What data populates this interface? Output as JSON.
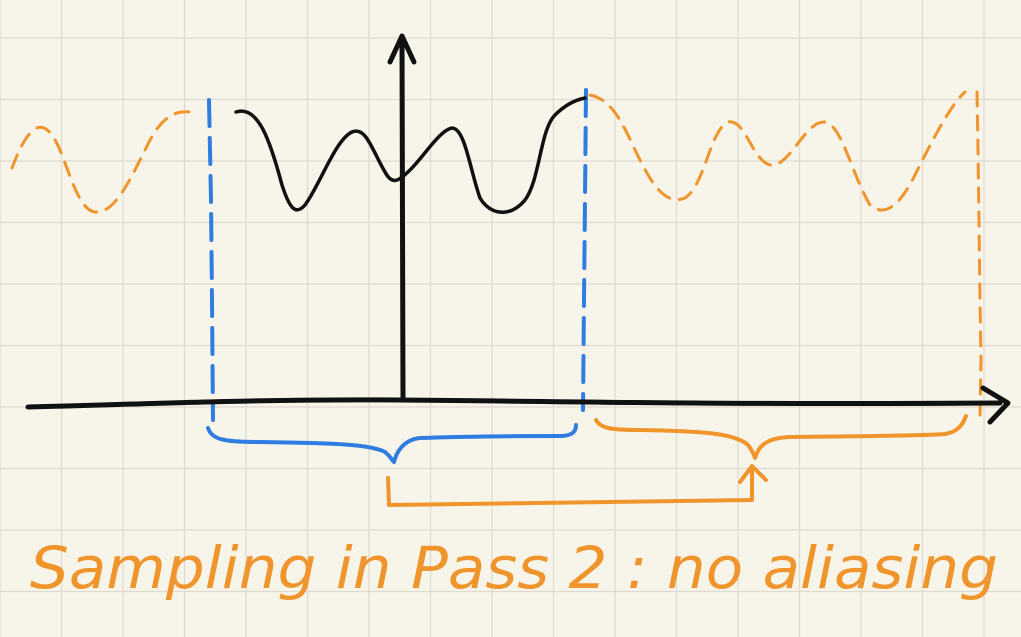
{
  "caption": "Sampling in Pass 2 : no aliasing",
  "colors": {
    "background": "#f7f4e9",
    "grid": "#dedad0",
    "ink": "#111111",
    "blue": "#2f7de1",
    "orange": "#f0952b"
  }
}
